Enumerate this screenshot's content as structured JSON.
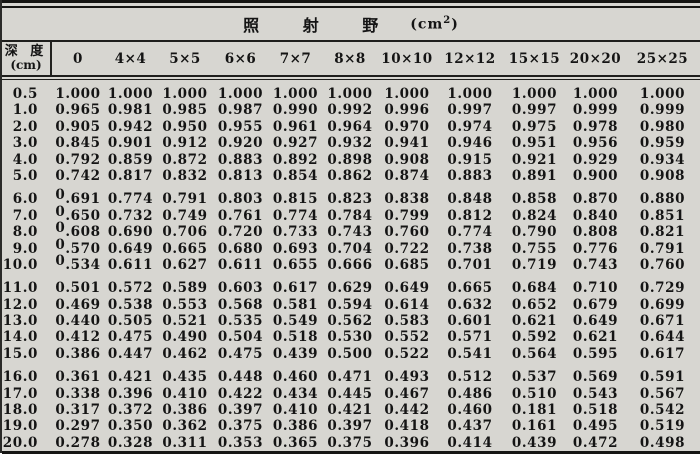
{
  "table": {
    "title": {
      "text": "照 射 野",
      "unit_prefix": "(cm",
      "unit_sup": "2",
      "unit_suffix": ")"
    },
    "depth_header": {
      "line1": "深 度",
      "line2": "(cm)"
    },
    "columns": [
      "0",
      "4×4",
      "5×5",
      "6×6",
      "7×7",
      "8×8",
      "10×10",
      "12×12",
      "15×15",
      "20×20",
      "25×25"
    ],
    "row_groups": [
      {
        "rows": [
          {
            "depth": "0.5",
            "values": [
              "1.000",
              "1.000",
              "1.000",
              "1.000",
              "1.000",
              "1.000",
              "1.000",
              "1.000",
              "1.000",
              "1.000",
              "1.000"
            ]
          },
          {
            "depth": "1.0",
            "values": [
              "0.965",
              "0.981",
              "0.985",
              "0.987",
              "0.990",
              "0.992",
              "0.996",
              "0.997",
              "0.997",
              "0.999",
              "0.999"
            ]
          },
          {
            "depth": "2.0",
            "values": [
              "0.905",
              "0.942",
              "0.950",
              "0.955",
              "0.961",
              "0.964",
              "0.970",
              "0.974",
              "0.975",
              "0.978",
              "0.980"
            ]
          },
          {
            "depth": "3.0",
            "values": [
              "0.845",
              "0.901",
              "0.912",
              "0.920",
              "0.927",
              "0.932",
              "0.941",
              "0.946",
              "0.951",
              "0.956",
              "0.959"
            ]
          },
          {
            "depth": "4.0",
            "values": [
              "0.792",
              "0.859",
              "0.872",
              "0.883",
              "0.892",
              "0.898",
              "0.908",
              "0.915",
              "0.921",
              "0.929",
              "0.934"
            ]
          },
          {
            "depth": "5.0",
            "values": [
              "0.742",
              "0.817",
              "0.832",
              "0.813",
              "0.854",
              "0.862",
              "0.874",
              "0.883",
              "0.891",
              "0.900",
              "0.908"
            ]
          }
        ]
      },
      {
        "rows": [
          {
            "depth": "6.0",
            "raised_zero": true,
            "values": [
              "0.691",
              "0.774",
              "0.791",
              "0.803",
              "0.815",
              "0.823",
              "0.838",
              "0.848",
              "0.858",
              "0.870",
              "0.880"
            ]
          },
          {
            "depth": "7.0",
            "raised_zero": true,
            "values": [
              "0.650",
              "0.732",
              "0.749",
              "0.761",
              "0.774",
              "0.784",
              "0.799",
              "0.812",
              "0.824",
              "0.840",
              "0.851"
            ]
          },
          {
            "depth": "8.0",
            "raised_zero": true,
            "values": [
              "0.608",
              "0.690",
              "0.706",
              "0.720",
              "0.733",
              "0.743",
              "0.760",
              "0.774",
              "0.790",
              "0.808",
              "0.821"
            ]
          },
          {
            "depth": "9.0",
            "raised_zero": true,
            "values": [
              "0.570",
              "0.649",
              "0.665",
              "0.680",
              "0.693",
              "0.704",
              "0.722",
              "0.738",
              "0.755",
              "0.776",
              "0.791"
            ]
          },
          {
            "depth": "10.0",
            "raised_zero": true,
            "values": [
              "0.534",
              "0.611",
              "0.627",
              "0.611",
              "0.655",
              "0.666",
              "0.685",
              "0.701",
              "0.719",
              "0.743",
              "0.760"
            ]
          }
        ]
      },
      {
        "rows": [
          {
            "depth": "11.0",
            "values": [
              "0.501",
              "0.572",
              "0.589",
              "0.603",
              "0.617",
              "0.629",
              "0.649",
              "0.665",
              "0.684",
              "0.710",
              "0.729"
            ]
          },
          {
            "depth": "12.0",
            "values": [
              "0.469",
              "0.538",
              "0.553",
              "0.568",
              "0.581",
              "0.594",
              "0.614",
              "0.632",
              "0.652",
              "0.679",
              "0.699"
            ]
          },
          {
            "depth": "13.0",
            "values": [
              "0.440",
              "0.505",
              "0.521",
              "0.535",
              "0.549",
              "0.562",
              "0.583",
              "0.601",
              "0.621",
              "0.649",
              "0.671"
            ]
          },
          {
            "depth": "14.0",
            "values": [
              "0.412",
              "0.475",
              "0.490",
              "0.504",
              "0.518",
              "0.530",
              "0.552",
              "0.571",
              "0.592",
              "0.621",
              "0.644"
            ]
          },
          {
            "depth": "15.0",
            "values": [
              "0.386",
              "0.447",
              "0.462",
              "0.475",
              "0.439",
              "0.500",
              "0.522",
              "0.541",
              "0.564",
              "0.595",
              "0.617"
            ]
          }
        ]
      },
      {
        "rows": [
          {
            "depth": "16.0",
            "values": [
              "0.361",
              "0.421",
              "0.435",
              "0.448",
              "0.460",
              "0.471",
              "0.493",
              "0.512",
              "0.537",
              "0.569",
              "0.591"
            ]
          },
          {
            "depth": "17.0",
            "values": [
              "0.338",
              "0.396",
              "0.410",
              "0.422",
              "0.434",
              "0.445",
              "0.467",
              "0.486",
              "0.510",
              "0.543",
              "0.567"
            ]
          },
          {
            "depth": "18.0",
            "values": [
              "0.317",
              "0.372",
              "0.386",
              "0.397",
              "0.410",
              "0.421",
              "0.442",
              "0.460",
              "0.181",
              "0.518",
              "0.542"
            ]
          },
          {
            "depth": "19.0",
            "values": [
              "0.297",
              "0.350",
              "0.362",
              "0.375",
              "0.386",
              "0.397",
              "0.418",
              "0.437",
              "0.161",
              "0.495",
              "0.519"
            ]
          },
          {
            "depth": "20.0",
            "values": [
              "0.278",
              "0.328",
              "0.311",
              "0.353",
              "0.365",
              "0.375",
              "0.396",
              "0.414",
              "0.439",
              "0.472",
              "0.498"
            ]
          }
        ]
      }
    ]
  }
}
